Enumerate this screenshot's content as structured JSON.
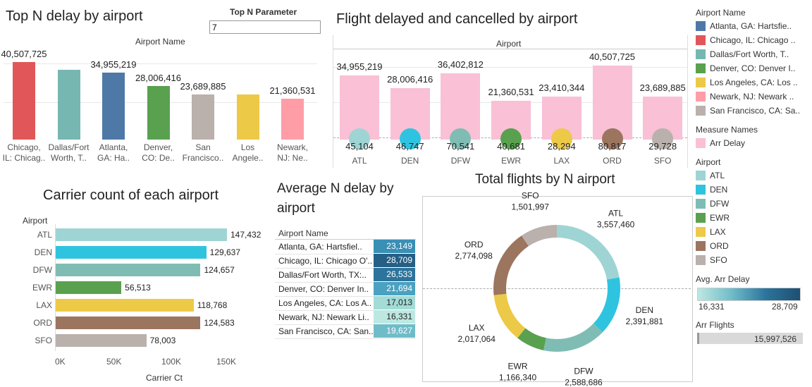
{
  "colors": {
    "ATL": "#9fd4d4",
    "DEN": "#2ec4e0",
    "DFW": "#7fbdb4",
    "EWR": "#59a14f",
    "LAX": "#edc948",
    "ORD": "#9c755f",
    "SFO": "#bab0ac",
    "chicago": "#e15759",
    "dallas": "#76b7b2",
    "atlanta": "#4e79a7",
    "denver": "#59a14f",
    "sanfran": "#bab0ac",
    "losangeles": "#edc948",
    "newark": "#ff9da7",
    "arrdelay": "#f9c0d6"
  },
  "topn": {
    "title": "Top N delay by airport",
    "param_label": "Top N Parameter",
    "param_value": "7",
    "axis_header": "Airport Name"
  },
  "flight_delayed": {
    "title": "Flight delayed and cancelled by airport",
    "axis_header": "Airport"
  },
  "carrier": {
    "title": "Carrier count of each airport",
    "axis_header": "Airport",
    "xlabel": "Carrier Ct",
    "ticks": [
      "0K",
      "50K",
      "100K",
      "150K"
    ]
  },
  "avg": {
    "title_line1": "Average N delay by",
    "title_line2": "airport",
    "header": "Airport Name",
    "rows": [
      {
        "name": "Atlanta, GA: Hartsfiel..",
        "value": "23,149",
        "bg": "#3a8fb5",
        "fg": "#fff"
      },
      {
        "name": "Chicago, IL: Chicago O'..",
        "value": "28,709",
        "bg": "#255f85",
        "fg": "#fff"
      },
      {
        "name": "Dallas/Fort Worth, TX:..",
        "value": "26,533",
        "bg": "#2c749c",
        "fg": "#fff"
      },
      {
        "name": "Denver, CO: Denver In..",
        "value": "21,694",
        "bg": "#4aa1c0",
        "fg": "#fff"
      },
      {
        "name": "Los Angeles, CA: Los A..",
        "value": "17,013",
        "bg": "#a3dbd6",
        "fg": "#222"
      },
      {
        "name": "Newark, NJ: Newark Li..",
        "value": "16,331",
        "bg": "#bde8e1",
        "fg": "#222"
      },
      {
        "name": "San Francisco, CA: San..",
        "value": "19,627",
        "bg": "#6fbcc9",
        "fg": "#fff"
      }
    ]
  },
  "total": {
    "title": "Total flights by N airport"
  },
  "legend": {
    "airport_name_header": "Airport Name",
    "airport_names": [
      {
        "label": "Atlanta, GA: Hartsfie..",
        "key": "atlanta"
      },
      {
        "label": "Chicago, IL: Chicago ..",
        "key": "chicago"
      },
      {
        "label": "Dallas/Fort Worth, T..",
        "key": "dallas"
      },
      {
        "label": "Denver, CO: Denver I..",
        "key": "denver"
      },
      {
        "label": "Los Angeles, CA: Los ..",
        "key": "losangeles"
      },
      {
        "label": "Newark, NJ: Newark ..",
        "key": "newark"
      },
      {
        "label": "San Francisco, CA: Sa..",
        "key": "sanfran"
      }
    ],
    "measure_header": "Measure Names",
    "measure_item": "Arr Delay",
    "airport_header": "Airport",
    "airports": [
      "ATL",
      "DEN",
      "DFW",
      "EWR",
      "LAX",
      "ORD",
      "SFO"
    ],
    "avg_header": "Avg. Arr Delay",
    "avg_min": "16,331",
    "avg_max": "28,709",
    "flights_header": "Arr Flights",
    "flights_value": "15,997,526"
  },
  "chart_data": [
    {
      "type": "bar",
      "title": "Top N delay by airport",
      "xlabel": "Airport Name",
      "categories": [
        "Chicago, IL: Chicag..",
        "Dallas/Fort Worth, T..",
        "Atlanta, GA: Ha..",
        "Denver, CO: De..",
        "San Francisco..",
        "Los Angele..",
        "Newark, NJ: Ne.."
      ],
      "color_keys": [
        "chicago",
        "dallas",
        "atlanta",
        "denver",
        "sanfran",
        "losangeles",
        "newark"
      ],
      "values": [
        40507725,
        36402812,
        34955219,
        28006416,
        23689885,
        23410344,
        21360531
      ],
      "labels": [
        "40,507,725",
        "",
        "34,955,219",
        "28,006,416",
        "23,689,885",
        "",
        "21,360,531"
      ],
      "ylim": [
        0,
        42000000
      ]
    },
    {
      "type": "bar",
      "title": "Flight delayed and cancelled by airport",
      "xlabel": "Airport",
      "categories": [
        "ATL",
        "DEN",
        "DFW",
        "EWR",
        "LAX",
        "ORD",
        "SFO"
      ],
      "series": [
        {
          "name": "Arr Delay",
          "values": [
            34955219,
            28006416,
            36402812,
            21360531,
            23410344,
            40507725,
            23689885
          ],
          "labels": [
            "34,955,219",
            "28,006,416",
            "36,402,812",
            "21,360,531",
            "23,410,344",
            "40,507,725",
            "23,689,885"
          ]
        },
        {
          "name": "",
          "values": [
            45104,
            46747,
            70541,
            40681,
            28294,
            80817,
            29728
          ],
          "labels": [
            "45,104",
            "46,747",
            "70,541",
            "40,681",
            "28,294",
            "80,817",
            "29,728"
          ]
        }
      ],
      "ylim": [
        0,
        42000000
      ]
    },
    {
      "type": "bar",
      "orientation": "horizontal",
      "title": "Carrier count of each airport",
      "ylabel": "Airport",
      "xlabel": "Carrier Ct",
      "categories": [
        "ATL",
        "DEN",
        "DFW",
        "EWR",
        "LAX",
        "ORD",
        "SFO"
      ],
      "values": [
        147432,
        129637,
        124657,
        56513,
        118768,
        124583,
        78003
      ],
      "labels": [
        "147,432",
        "129,637",
        "124,657",
        "56,513",
        "118,768",
        "124,583",
        "78,003"
      ],
      "xlim": [
        0,
        170000
      ]
    },
    {
      "type": "pie",
      "title": "Total flights by N airport",
      "categories": [
        "ATL",
        "DEN",
        "DFW",
        "EWR",
        "LAX",
        "ORD",
        "SFO"
      ],
      "values": [
        3557460,
        2391881,
        2588686,
        1166340,
        2017064,
        2774098,
        1501997
      ],
      "labels": [
        "3,557,460",
        "2,391,881",
        "2,588,686",
        "1,166,340",
        "2,017,064",
        "2,774,098",
        "1,501,997"
      ]
    }
  ]
}
